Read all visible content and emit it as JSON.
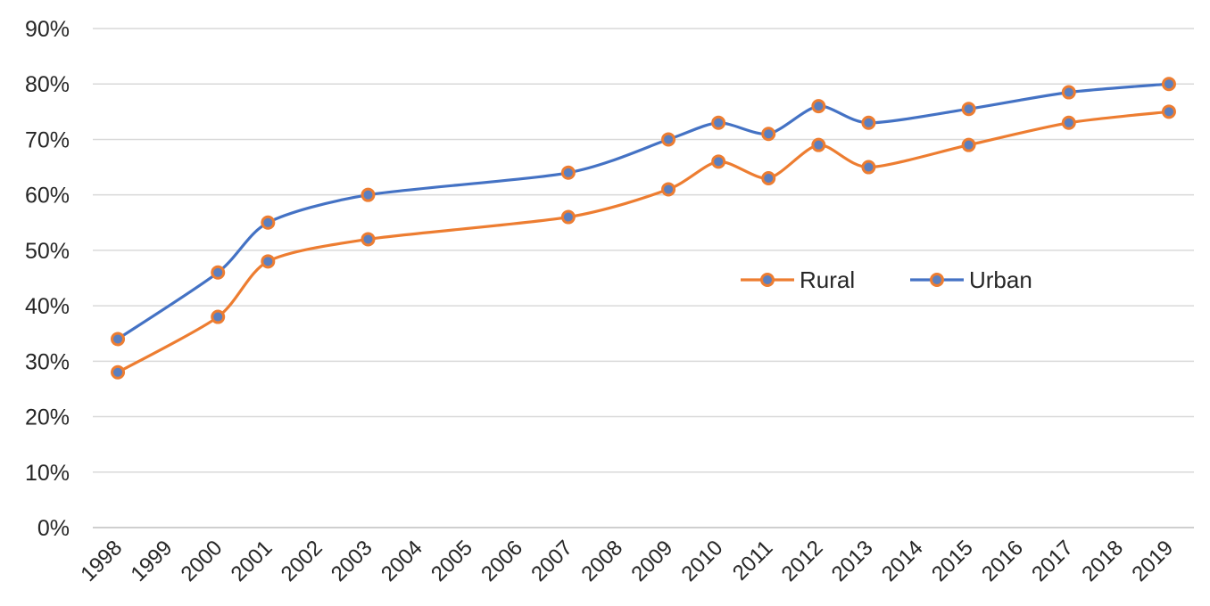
{
  "chart_data": {
    "type": "line",
    "title": "",
    "xlabel": "",
    "ylabel": "",
    "ylim": [
      0,
      90
    ],
    "ytick_step": 10,
    "y_tick_format": "percent",
    "grid": true,
    "smooth": true,
    "legend_position": "center-right",
    "categories": [
      "1998",
      "1999",
      "2000",
      "2001",
      "2002",
      "2003",
      "2004",
      "2005",
      "2006",
      "2007",
      "2008",
      "2009",
      "2010",
      "2011",
      "2012",
      "2013",
      "2014",
      "2015",
      "2016",
      "2017",
      "2018",
      "2019"
    ],
    "series": [
      {
        "name": "Rural",
        "line_color": "#ed7d31",
        "marker_fill": "#5b7fc0",
        "marker_edge": "#ed7d31",
        "points": [
          {
            "x": "1998",
            "y": 28
          },
          {
            "x": "2000",
            "y": 38
          },
          {
            "x": "2001",
            "y": 48
          },
          {
            "x": "2003",
            "y": 52
          },
          {
            "x": "2007",
            "y": 56
          },
          {
            "x": "2009",
            "y": 61
          },
          {
            "x": "2010",
            "y": 66
          },
          {
            "x": "2011",
            "y": 63
          },
          {
            "x": "2012",
            "y": 69
          },
          {
            "x": "2013",
            "y": 65
          },
          {
            "x": "2015",
            "y": 69
          },
          {
            "x": "2017",
            "y": 73
          },
          {
            "x": "2019",
            "y": 75
          }
        ]
      },
      {
        "name": "Urban",
        "line_color": "#4472c4",
        "marker_fill": "#5b7fc0",
        "marker_edge": "#ed7d31",
        "points": [
          {
            "x": "1998",
            "y": 34
          },
          {
            "x": "2000",
            "y": 46
          },
          {
            "x": "2001",
            "y": 55
          },
          {
            "x": "2003",
            "y": 60
          },
          {
            "x": "2007",
            "y": 64
          },
          {
            "x": "2009",
            "y": 70
          },
          {
            "x": "2010",
            "y": 73
          },
          {
            "x": "2011",
            "y": 71
          },
          {
            "x": "2012",
            "y": 76
          },
          {
            "x": "2013",
            "y": 73
          },
          {
            "x": "2015",
            "y": 75.5
          },
          {
            "x": "2017",
            "y": 78.5
          },
          {
            "x": "2019",
            "y": 80
          }
        ]
      }
    ]
  }
}
